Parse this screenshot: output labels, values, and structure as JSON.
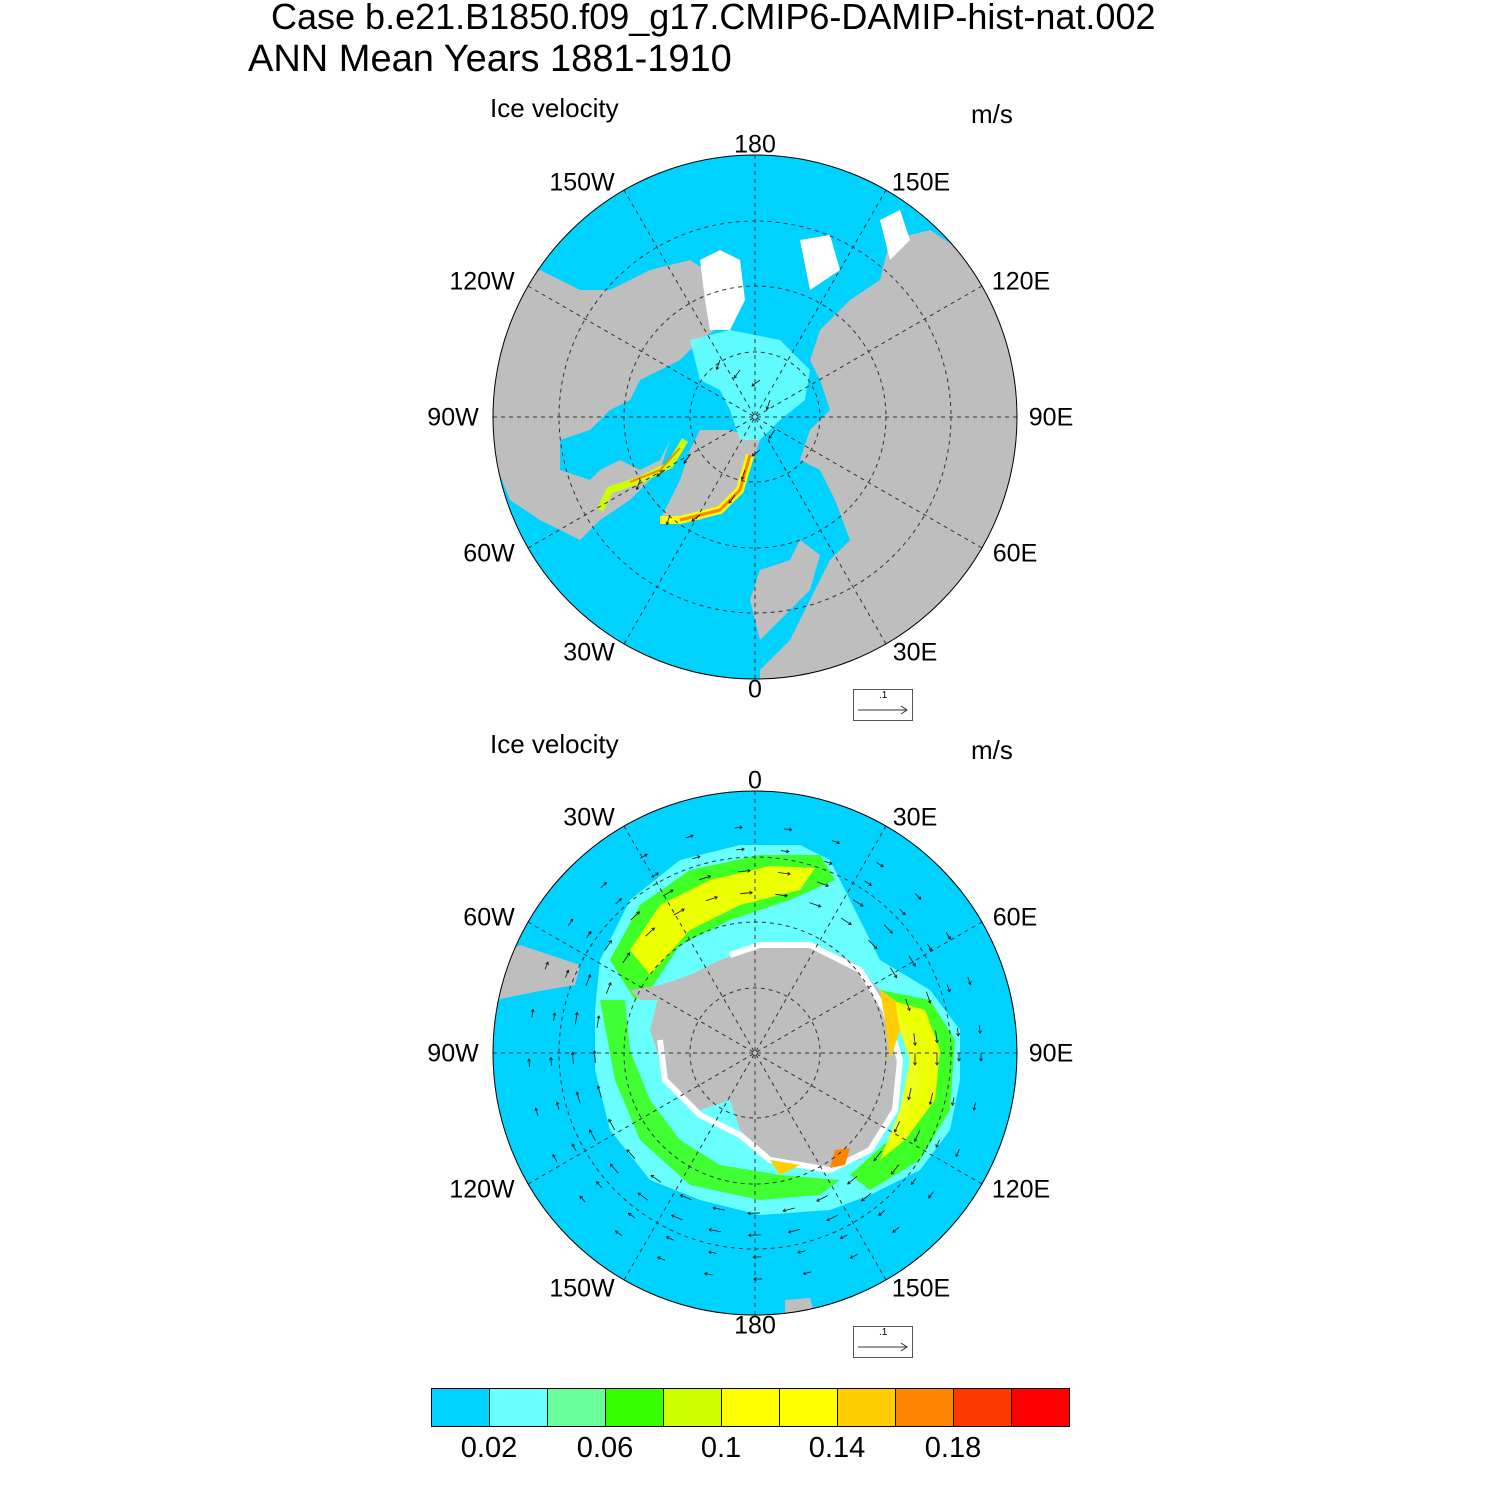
{
  "title_line1": "Case b.e21.B1850.f09_g17.CMIP6-DAMIP-hist-nat.002",
  "title_line2": "ANN Mean   Years 1881-1910",
  "panels": [
    {
      "name": "north",
      "title": "Ice velocity",
      "units": "m/s",
      "ref_vector_label": ".1",
      "lon_labels": [
        "180",
        "150E",
        "120E",
        "90E",
        "60E",
        "30E",
        "0",
        "30W",
        "60W",
        "90W",
        "120W",
        "150W"
      ]
    },
    {
      "name": "south",
      "title": "Ice velocity",
      "units": "m/s",
      "ref_vector_label": ".1",
      "lon_labels": [
        "0",
        "30E",
        "60E",
        "90E",
        "120E",
        "150E",
        "180",
        "150W",
        "120W",
        "90W",
        "60W",
        "30W"
      ]
    }
  ],
  "colorbar": {
    "colors": [
      "#00d2ff",
      "#6affff",
      "#6aff9b",
      "#36ff00",
      "#cdff00",
      "#ffff00",
      "#ffff00",
      "#ffcd00",
      "#ff8500",
      "#ff3800",
      "#ff0000"
    ],
    "labels": [
      "0.02",
      "0.06",
      "0.1",
      "0.14",
      "0.18"
    ],
    "label_values": [
      0.02,
      0.06,
      0.1,
      0.14,
      0.18
    ]
  },
  "map_colors": {
    "ocean": "#00d2ff",
    "land": "#bebebe",
    "no_data": "#ffffff"
  }
}
